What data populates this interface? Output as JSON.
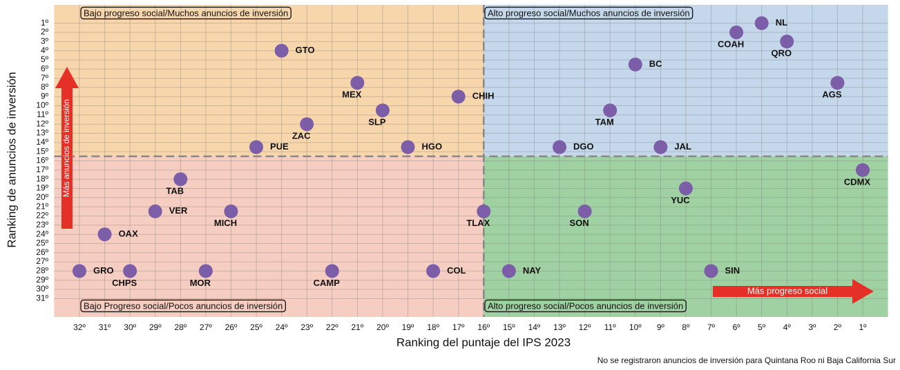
{
  "chart_data": {
    "type": "scatter",
    "x_label": "Ranking del puntaje del IPS 2023",
    "y_label": "Ranking de anuncios de inversión",
    "footnote": "No se registraron anuncios de inversión para Quintana Roo ni Baja California Sur",
    "quadrant_labels": [
      "Bajo progreso social/Muchos anuncios de inversión",
      "Alto progreso social/Muchos anuncios de inversión",
      "Bajo Progreso social/Pocos anuncios de inversión",
      "Alto progreso social/Pocos anuncios de inversión"
    ],
    "arrow_labels": [
      "Más anuncios de inversión",
      "Más progreso social"
    ],
    "divider_x": 16,
    "divider_y": 15.5,
    "color": "#7b5ea7",
    "point_labels": [
      "NL",
      "COAH",
      "QRO",
      "GTO",
      "BC",
      "AGS",
      "MEX",
      "CHIH",
      "SLP",
      "TAM",
      "ZAC",
      "PUE",
      "HGO",
      "DGO",
      "JAL",
      "CDMX",
      "TAB",
      "YUC",
      "VER",
      "MICH",
      "TLAX",
      "SON",
      "OAX",
      "GRO",
      "CHPS",
      "MOR",
      "CAMP",
      "COL",
      "NAY",
      "SIN"
    ],
    "x": [
      5,
      6,
      4,
      24,
      10,
      2,
      21,
      17,
      20,
      11,
      23,
      25,
      19,
      13,
      9,
      1,
      28,
      8,
      29,
      26,
      16,
      12,
      31,
      32,
      30,
      27,
      22,
      18,
      15,
      7
    ],
    "values": [
      1,
      2,
      3,
      4,
      5.5,
      7.5,
      7.5,
      9,
      10.5,
      10.5,
      12,
      14.5,
      14.5,
      14.5,
      14.5,
      17,
      18,
      19,
      21.5,
      21.5,
      21.5,
      21.5,
      24,
      28,
      28,
      28,
      28,
      28,
      28,
      28
    ],
    "xlim": [
      33,
      0
    ],
    "ylim": [
      33,
      -1
    ],
    "xticks": [
      {
        "value": 32,
        "label": "32º"
      },
      {
        "value": 31,
        "label": "31º"
      },
      {
        "value": 30,
        "label": "30º"
      },
      {
        "value": 29,
        "label": "29º"
      },
      {
        "value": 28,
        "label": "28º"
      },
      {
        "value": 27,
        "label": "27º"
      },
      {
        "value": 26,
        "label": "26º"
      },
      {
        "value": 25,
        "label": "25º"
      },
      {
        "value": 24,
        "label": "24º"
      },
      {
        "value": 23,
        "label": "23º"
      },
      {
        "value": 22,
        "label": "22º"
      },
      {
        "value": 21,
        "label": "21º"
      },
      {
        "value": 20,
        "label": "20º"
      },
      {
        "value": 19,
        "label": "19º"
      },
      {
        "value": 18,
        "label": "18º"
      },
      {
        "value": 17,
        "label": "17º"
      },
      {
        "value": 16,
        "label": "16º"
      },
      {
        "value": 15,
        "label": "15º"
      },
      {
        "value": 14,
        "label": "14º"
      },
      {
        "value": 13,
        "label": "13º"
      },
      {
        "value": 12,
        "label": "12º"
      },
      {
        "value": 11,
        "label": "11º"
      },
      {
        "value": 10,
        "label": "10º"
      },
      {
        "value": 9,
        "label": "9º"
      },
      {
        "value": 8,
        "label": "8º"
      },
      {
        "value": 7,
        "label": "7º"
      },
      {
        "value": 6,
        "label": "6º"
      },
      {
        "value": 5,
        "label": "5º"
      },
      {
        "value": 4,
        "label": "4º"
      },
      {
        "value": 3,
        "label": "3º"
      },
      {
        "value": 2,
        "label": "2º"
      },
      {
        "value": 1,
        "label": "1º"
      }
    ],
    "yticks": [
      {
        "value": 1,
        "label": "1º"
      },
      {
        "value": 2,
        "label": "2º"
      },
      {
        "value": 3,
        "label": "3º"
      },
      {
        "value": 4,
        "label": "4º"
      },
      {
        "value": 5,
        "label": "5º"
      },
      {
        "value": 6,
        "label": "6º"
      },
      {
        "value": 7,
        "label": "7º"
      },
      {
        "value": 8,
        "label": "8º"
      },
      {
        "value": 9,
        "label": "9º"
      },
      {
        "value": 10,
        "label": "10º"
      },
      {
        "value": 11,
        "label": "11º"
      },
      {
        "value": 12,
        "label": "12º"
      },
      {
        "value": 13,
        "label": "13º"
      },
      {
        "value": 14,
        "label": "14º"
      },
      {
        "value": 15,
        "label": "15º"
      },
      {
        "value": 16,
        "label": "16º"
      },
      {
        "value": 17,
        "label": "17º"
      },
      {
        "value": 18,
        "label": "18º"
      },
      {
        "value": 19,
        "label": "19º"
      },
      {
        "value": 20,
        "label": "20º"
      },
      {
        "value": 21,
        "label": "21º"
      },
      {
        "value": 22,
        "label": "22º"
      },
      {
        "value": 23,
        "label": "23º"
      },
      {
        "value": 24,
        "label": "24º"
      },
      {
        "value": 25,
        "label": "25º"
      },
      {
        "value": 26,
        "label": "26º"
      },
      {
        "value": 27,
        "label": "27º"
      },
      {
        "value": 28,
        "label": "28º"
      },
      {
        "value": 29,
        "label": "29º"
      },
      {
        "value": 30,
        "label": "30º"
      },
      {
        "value": 31,
        "label": "31º"
      }
    ],
    "grid": true
  }
}
